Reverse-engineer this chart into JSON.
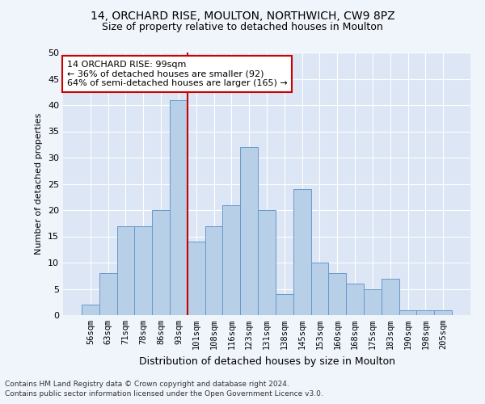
{
  "title1": "14, ORCHARD RISE, MOULTON, NORTHWICH, CW9 8PZ",
  "title2": "Size of property relative to detached houses in Moulton",
  "xlabel": "Distribution of detached houses by size in Moulton",
  "ylabel": "Number of detached properties",
  "categories": [
    "56sqm",
    "63sqm",
    "71sqm",
    "78sqm",
    "86sqm",
    "93sqm",
    "101sqm",
    "108sqm",
    "116sqm",
    "123sqm",
    "131sqm",
    "138sqm",
    "145sqm",
    "153sqm",
    "160sqm",
    "168sqm",
    "175sqm",
    "183sqm",
    "190sqm",
    "198sqm",
    "205sqm"
  ],
  "values": [
    2,
    8,
    17,
    17,
    20,
    41,
    14,
    17,
    21,
    32,
    20,
    4,
    24,
    10,
    8,
    6,
    5,
    7,
    1,
    1,
    1
  ],
  "bar_color": "#b8cfe8",
  "bar_edge_color": "#6699cc",
  "vline_color": "#cc0000",
  "annotation_text": "14 ORCHARD RISE: 99sqm\n← 36% of detached houses are smaller (92)\n64% of semi-detached houses are larger (165) →",
  "annotation_box_color": "#ffffff",
  "annotation_box_edge": "#cc0000",
  "ylim": [
    0,
    50
  ],
  "yticks": [
    0,
    5,
    10,
    15,
    20,
    25,
    30,
    35,
    40,
    45,
    50
  ],
  "fig_bg_color": "#f0f4fb",
  "axes_bg_color": "#dce6f5",
  "grid_color": "#ffffff",
  "footnote1": "Contains HM Land Registry data © Crown copyright and database right 2024.",
  "footnote2": "Contains public sector information licensed under the Open Government Licence v3.0."
}
